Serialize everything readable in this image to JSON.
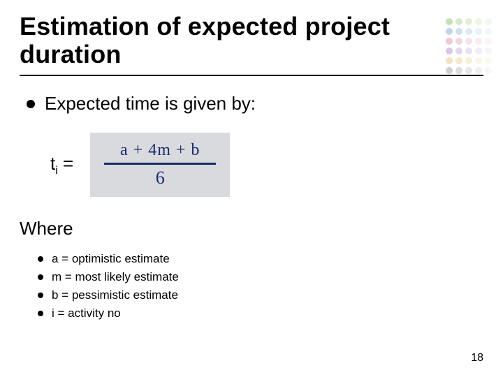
{
  "title": "Estimation of expected project duration",
  "main_bullet": "Expected time is given by:",
  "formula": {
    "lhs_symbol": "t",
    "lhs_subscript": "i",
    "lhs_eq": "=",
    "numerator": "a + 4m + b",
    "denominator": "6",
    "handwriting_color": "#1a2b6b",
    "handwriting_bg": "#d8dadd"
  },
  "where_label": "Where",
  "definitions": [
    "a = optimistic estimate",
    "m = most likely estimate",
    "b = pessimistic estimate",
    "i =  activity no"
  ],
  "page_number": "18",
  "dotgrid_colors": [
    "#c8e0b4",
    "#d6e8c6",
    "#e2efd6",
    "#ecf4e4",
    "#f4f8ef",
    "#c0d4ea",
    "#d0dff0",
    "#dee9f4",
    "#eaf1f8",
    "#f3f7fb",
    "#f0c8d4",
    "#f4d6de",
    "#f7e2e8",
    "#faecf0",
    "#fcf4f6",
    "#d8c8e4",
    "#e2d6ec",
    "#eae2f2",
    "#f1ecf6",
    "#f7f4fa",
    "#f4e2c0",
    "#f7eacb",
    "#f9f0db",
    "#fbf5e7",
    "#fdf9f1",
    "#cfcfcf",
    "#dcdcdc",
    "#e6e6e6",
    "#efefef",
    "#f6f6f6"
  ],
  "colors": {
    "text": "#000000",
    "background": "#ffffff",
    "rule": "#000000"
  }
}
